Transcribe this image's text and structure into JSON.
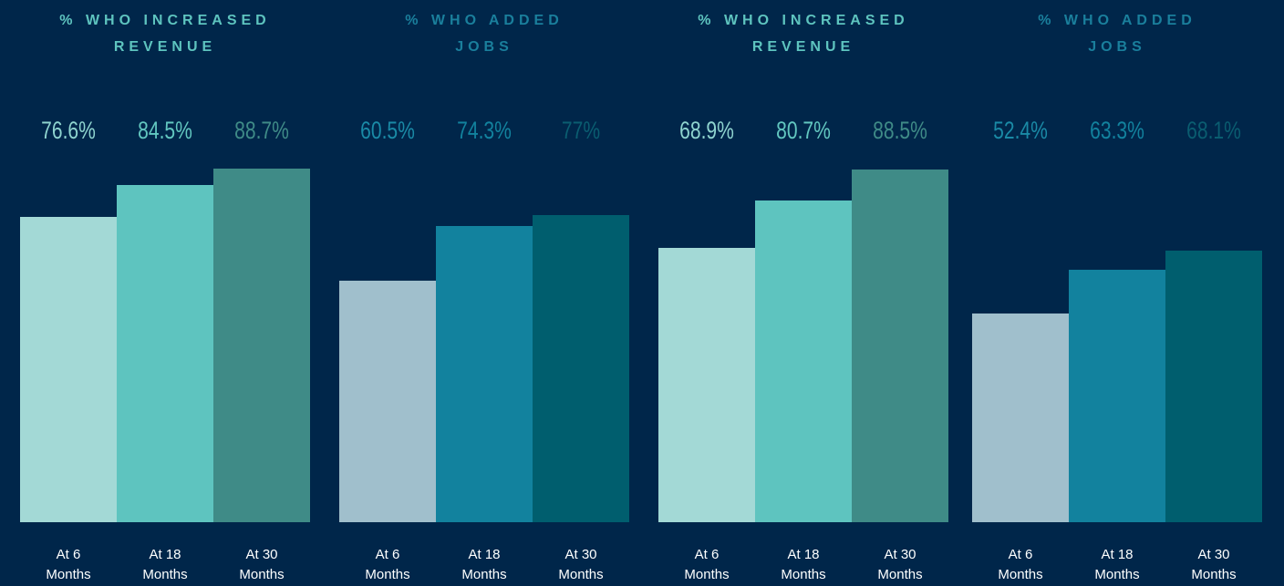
{
  "chart_data": [
    {
      "type": "bar",
      "title": "% WHO INCREASED REVENUE",
      "title_color": "#5ec4bf",
      "categories": [
        "At 6 Months",
        "At 18 Months",
        "At 30 Months"
      ],
      "values": [
        76.6,
        84.5,
        88.7
      ],
      "value_labels": [
        "76.6%",
        "84.5%",
        "88.7%"
      ],
      "colors": [
        "#a3d9d6",
        "#5ec4bf",
        "#3f8b87"
      ],
      "label_colors": [
        "#8fd4cf",
        "#62c7c0",
        "#3f8b87"
      ]
    },
    {
      "type": "bar",
      "title": "% WHO ADDED JOBS",
      "title_color": "#1a7f9c",
      "categories": [
        "At 6 Months",
        "At 18 Months",
        "At 30 Months"
      ],
      "values": [
        60.5,
        74.3,
        77
      ],
      "value_labels": [
        "60.5%",
        "74.3%",
        "77%"
      ],
      "colors": [
        "#a0bfcc",
        "#12829e",
        "#005e6e"
      ],
      "label_colors": [
        "#1a8aa6",
        "#12829e",
        "#0a5d70"
      ]
    },
    {
      "type": "bar",
      "title": "% WHO INCREASED REVENUE",
      "title_color": "#5ec4bf",
      "categories": [
        "At 6 Months",
        "At 18 Months",
        "At 30 Months"
      ],
      "values": [
        68.9,
        80.7,
        88.5
      ],
      "value_labels": [
        "68.9%",
        "80.7%",
        "88.5%"
      ],
      "colors": [
        "#a3d9d6",
        "#5ec4bf",
        "#3f8b87"
      ],
      "label_colors": [
        "#8fd4cf",
        "#62c7c0",
        "#3f8b87"
      ]
    },
    {
      "type": "bar",
      "title": "% WHO ADDED JOBS",
      "title_color": "#1a7f9c",
      "categories": [
        "At 6 Months",
        "At 18 Months",
        "At 30 Months"
      ],
      "values": [
        52.4,
        63.3,
        68.1
      ],
      "value_labels": [
        "52.4%",
        "63.3%",
        "68.1%"
      ],
      "colors": [
        "#a0bfcc",
        "#12829e",
        "#005e6e"
      ],
      "label_colors": [
        "#1a8aa6",
        "#12829e",
        "#0a5d70"
      ]
    }
  ]
}
